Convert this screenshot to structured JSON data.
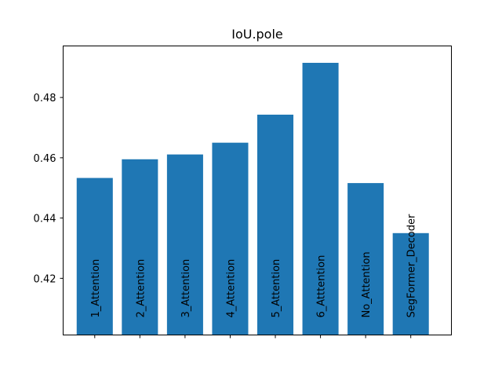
{
  "chart_data": {
    "type": "bar",
    "title": "IoU.pole",
    "xlabel": "",
    "ylabel": "",
    "categories": [
      "1_Attention",
      "2_Attention",
      "3_Attention",
      "4_Attention",
      "5_Attention",
      "6_Atttention",
      "No_Attention",
      "SegFormer_Decoder"
    ],
    "values": [
      0.4533,
      0.4595,
      0.4611,
      0.465,
      0.4743,
      0.4915,
      0.4516,
      0.435
    ],
    "ylim": [
      0.4012,
      0.4971
    ],
    "yticks": [
      0.42,
      0.44,
      0.46,
      0.48
    ],
    "ytick_labels": [
      "0.42",
      "0.44",
      "0.46",
      "0.48"
    ],
    "bar_color": "#1f77b4",
    "grid": false,
    "legend": false,
    "category_labels_inside_bars": true
  }
}
